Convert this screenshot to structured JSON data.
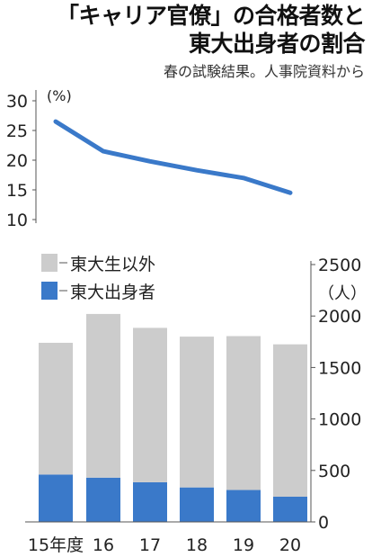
{
  "title": {
    "line1": "「キャリア官僚」の合格者数と",
    "line2": "東大出身者の割合"
  },
  "subtitle": "春の試験結果。人事院資料から",
  "chart_data": [
    {
      "type": "line",
      "title": "",
      "unit": "(%)",
      "x": [
        "15年度",
        "16",
        "17",
        "18",
        "19",
        "20"
      ],
      "ylim": [
        10,
        30
      ],
      "yticks": [
        10,
        15,
        20,
        25,
        30
      ],
      "series": [
        {
          "name": "",
          "values": [
            26.5,
            21.5,
            19.8,
            18.3,
            17.0,
            14.5
          ],
          "color": "#3a79c9"
        }
      ]
    },
    {
      "type": "bar",
      "stacked": true,
      "unit": "（人）",
      "categories": [
        "15年度",
        "16",
        "17",
        "18",
        "19",
        "20"
      ],
      "ylim": [
        0,
        2500
      ],
      "yticks": [
        0,
        500,
        1000,
        1500,
        2000,
        2500
      ],
      "axis_position": "right",
      "series": [
        {
          "name": "東大出身者",
          "values": [
            460,
            430,
            385,
            335,
            310,
            245
          ],
          "color": "#3a79c9"
        },
        {
          "name": "東大生以外",
          "values": [
            1280,
            1590,
            1500,
            1465,
            1495,
            1480
          ],
          "color": "#cccccc"
        }
      ],
      "legend": [
        "東大生以外",
        "東大出身者"
      ],
      "legend_placement": "top-left"
    }
  ]
}
